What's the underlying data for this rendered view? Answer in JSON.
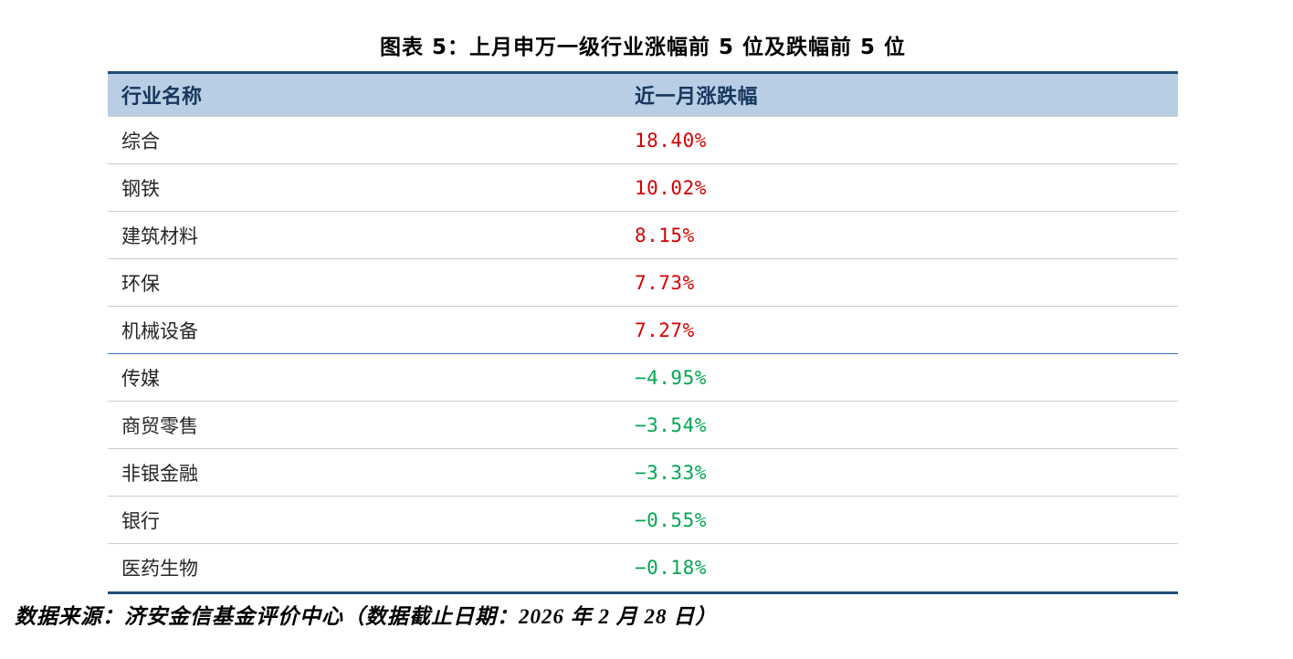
{
  "chart_data": {
    "type": "table",
    "title": "图表 5：上月申万一级行业涨幅前 5 位及跌幅前 5 位",
    "columns": [
      "行业名称",
      "近一月涨跌幅"
    ],
    "rows": [
      {
        "name": "综合",
        "value": "18.40%",
        "pct": 18.4,
        "direction": "up"
      },
      {
        "name": "钢铁",
        "value": "10.02%",
        "pct": 10.02,
        "direction": "up"
      },
      {
        "name": "建筑材料",
        "value": "8.15%",
        "pct": 8.15,
        "direction": "up"
      },
      {
        "name": "环保",
        "value": "7.73%",
        "pct": 7.73,
        "direction": "up"
      },
      {
        "name": "机械设备",
        "value": "7.27%",
        "pct": 7.27,
        "direction": "up"
      },
      {
        "name": "传媒",
        "value": "−4.95%",
        "pct": -4.95,
        "direction": "down"
      },
      {
        "name": "商贸零售",
        "value": "−3.54%",
        "pct": -3.54,
        "direction": "down"
      },
      {
        "name": "非银金融",
        "value": "−3.33%",
        "pct": -3.33,
        "direction": "down"
      },
      {
        "name": "银行",
        "value": "−0.55%",
        "pct": -0.55,
        "direction": "down"
      },
      {
        "name": "医药生物",
        "value": "−0.18%",
        "pct": -0.18,
        "direction": "down"
      }
    ],
    "categories": [
      "综合",
      "钢铁",
      "建筑材料",
      "环保",
      "机械设备",
      "传媒",
      "商贸零售",
      "非银金融",
      "银行",
      "医药生物"
    ],
    "values": [
      18.4,
      10.02,
      8.15,
      7.73,
      7.27,
      -4.95,
      -3.54,
      -3.33,
      -0.55,
      -0.18
    ],
    "source_note": "数据来源：济安金信基金评价中心（数据截止日期：2026 年 2 月 28 日）"
  },
  "colors": {
    "positive": "#d40000",
    "negative": "#00a651",
    "header_bg": "#b9cde5",
    "header_text": "#17365d",
    "border_blue": "#1f4e79",
    "row_divider": "#cccccc",
    "group_divider": "#2e75b6"
  }
}
